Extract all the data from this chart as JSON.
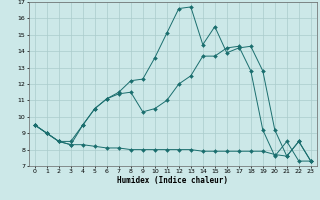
{
  "xlabel": "Humidex (Indice chaleur)",
  "xlim": [
    -0.5,
    23.5
  ],
  "ylim": [
    7,
    17
  ],
  "yticks": [
    7,
    8,
    9,
    10,
    11,
    12,
    13,
    14,
    15,
    16,
    17
  ],
  "xticks": [
    0,
    1,
    2,
    3,
    4,
    5,
    6,
    7,
    8,
    9,
    10,
    11,
    12,
    13,
    14,
    15,
    16,
    17,
    18,
    19,
    20,
    21,
    22,
    23
  ],
  "bg_color": "#cce8e8",
  "grid_color": "#aacccc",
  "line_color": "#1a6e6e",
  "series": [
    {
      "x": [
        0,
        1,
        2,
        3,
        4,
        5,
        6,
        7,
        8,
        9,
        10,
        11,
        12,
        13,
        14,
        15,
        16,
        17,
        18,
        19,
        20,
        21,
        22,
        23
      ],
      "y": [
        9.5,
        9.0,
        8.5,
        8.3,
        8.3,
        8.2,
        8.1,
        8.1,
        8.0,
        8.0,
        8.0,
        8.0,
        8.0,
        8.0,
        7.9,
        7.9,
        7.9,
        7.9,
        7.9,
        7.9,
        7.7,
        7.6,
        8.5,
        7.3
      ]
    },
    {
      "x": [
        0,
        1,
        2,
        3,
        4,
        5,
        6,
        7,
        8,
        9,
        10,
        11,
        12,
        13,
        14,
        15,
        16,
        17,
        18,
        19,
        20,
        21,
        22,
        23
      ],
      "y": [
        9.5,
        9.0,
        8.5,
        8.3,
        9.5,
        10.5,
        11.1,
        11.4,
        11.5,
        10.3,
        10.5,
        11.0,
        12.0,
        12.5,
        13.7,
        13.7,
        14.2,
        14.3,
        12.8,
        9.2,
        7.6,
        8.5,
        7.3,
        7.3
      ]
    },
    {
      "x": [
        0,
        1,
        2,
        3,
        4,
        5,
        6,
        7,
        8,
        9,
        10,
        11,
        12,
        13,
        14,
        15,
        16,
        17,
        18,
        19,
        20,
        21,
        22,
        23
      ],
      "y": [
        9.5,
        9.0,
        8.5,
        8.5,
        9.5,
        10.5,
        11.1,
        11.5,
        12.2,
        12.3,
        13.6,
        15.1,
        16.6,
        16.7,
        14.4,
        15.5,
        13.9,
        14.2,
        14.3,
        12.8,
        9.2,
        7.6,
        8.5,
        7.3
      ]
    }
  ]
}
